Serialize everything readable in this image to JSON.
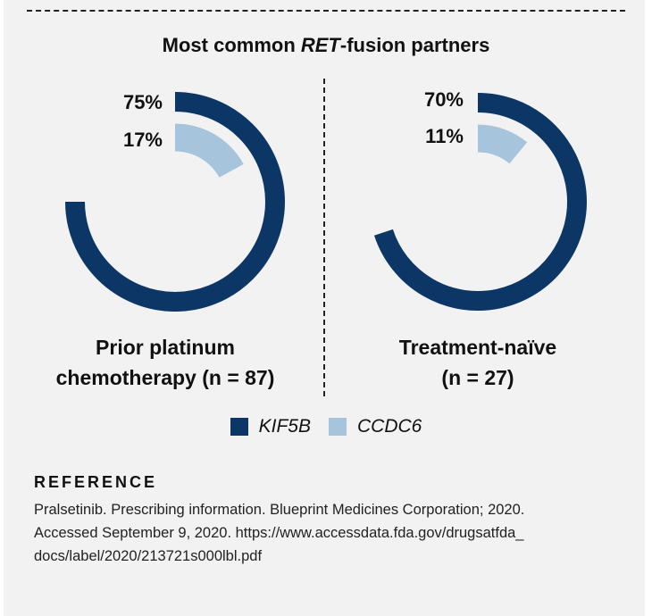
{
  "title": {
    "prefix": "Most common ",
    "italic": "RET",
    "suffix": "-fusion partners"
  },
  "colors": {
    "kif5b": "#0b3666",
    "ccdc6": "#a6c4dc"
  },
  "chart_data": {
    "type": "pie",
    "title": "Most common RET-fusion partners",
    "legend": [
      "KIF5B",
      "CCDC6"
    ],
    "groups": [
      {
        "label_line1": "Prior platinum",
        "label_line2": "chemotherapy (n = 87)",
        "slices": [
          {
            "name": "KIF5B",
            "value": 75,
            "label": "75%"
          },
          {
            "name": "CCDC6",
            "value": 17,
            "label": "17%"
          }
        ]
      },
      {
        "label_line1": "Treatment-naïve",
        "label_line2": "(n = 27)",
        "slices": [
          {
            "name": "KIF5B",
            "value": 70,
            "label": "70%"
          },
          {
            "name": "CCDC6",
            "value": 11,
            "label": "11%"
          }
        ]
      }
    ]
  },
  "reference": {
    "heading": "REFERENCE",
    "lines": [
      "Pralsetinib. Prescribing information. Blueprint Medicines Corporation; 2020.",
      "Accessed September 9, 2020. https://www.accessdata.fda.gov/drugsatfda_",
      "docs/label/2020/213721s000lbl.pdf"
    ]
  }
}
